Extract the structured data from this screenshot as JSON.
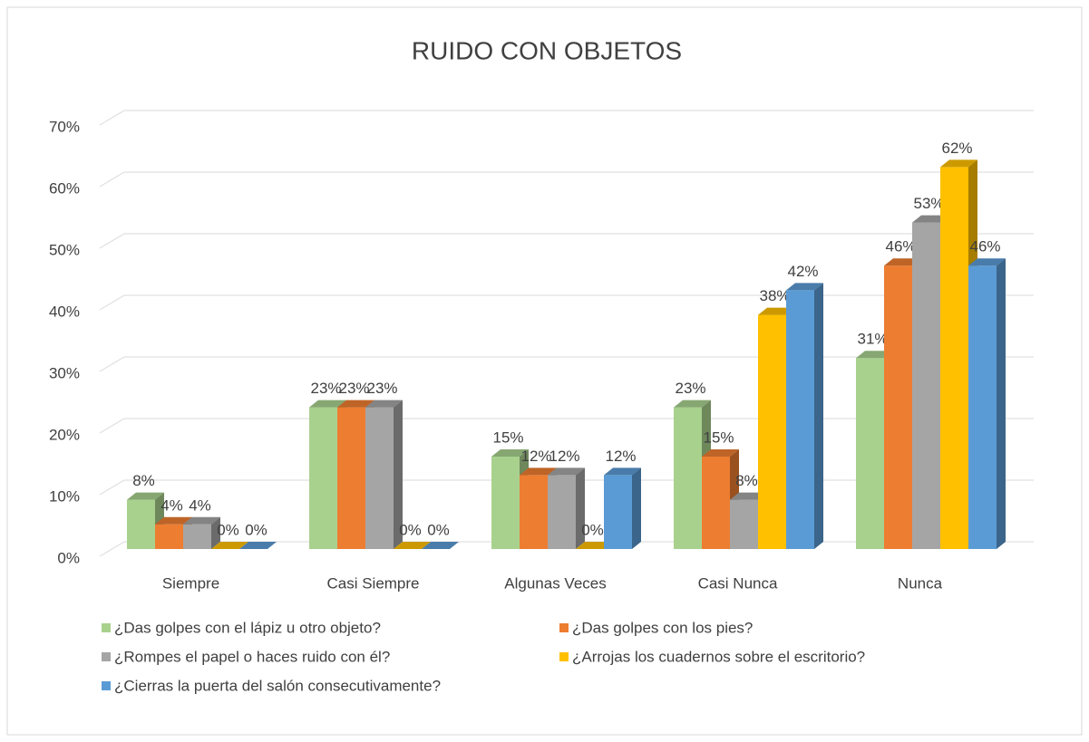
{
  "chart_data": {
    "type": "bar3d",
    "title": "RUIDO CON OBJETOS",
    "categories": [
      "Siempre",
      "Casi Siempre",
      "Algunas Veces",
      "Casi Nunca",
      "Nunca"
    ],
    "series": [
      {
        "name": "¿Das golpes con el lápiz u otro objeto?",
        "color": "#a9d18e",
        "values": [
          8,
          23,
          15,
          23,
          31
        ],
        "value_labels": [
          "8%",
          "23%",
          "15%",
          "23%",
          "31%"
        ]
      },
      {
        "name": "¿Das golpes con los pies?",
        "color": "#ed7d31",
        "values": [
          4,
          23,
          12,
          15,
          46
        ],
        "value_labels": [
          "4%",
          "23%",
          "12%",
          "15%",
          "46%"
        ]
      },
      {
        "name": "¿Rompes el papel o haces ruido con él?",
        "color": "#a5a5a5",
        "values": [
          4,
          23,
          12,
          8,
          53
        ],
        "value_labels": [
          "4%",
          "23%",
          "12%",
          "8%",
          "53%"
        ]
      },
      {
        "name": "¿Arrojas los cuadernos sobre el escritorio?",
        "color": "#ffc000",
        "values": [
          0,
          0,
          0,
          38,
          62
        ],
        "value_labels": [
          "0%",
          "0%",
          "0%",
          "38%",
          "62%"
        ]
      },
      {
        "name": "¿Cierras la puerta del salón consecutivamente?",
        "color": "#5b9bd5",
        "values": [
          0,
          0,
          12,
          42,
          46
        ],
        "value_labels": [
          "0%",
          "0%",
          "12%",
          "42%",
          "46%"
        ]
      }
    ],
    "ylim": [
      0,
      70
    ],
    "yticks": [
      {
        "value": 0,
        "label": "0%"
      },
      {
        "value": 10,
        "label": "10%"
      },
      {
        "value": 20,
        "label": "20%"
      },
      {
        "value": 30,
        "label": "30%"
      },
      {
        "value": 40,
        "label": "40%"
      },
      {
        "value": 50,
        "label": "50%"
      },
      {
        "value": 60,
        "label": "60%"
      },
      {
        "value": 70,
        "label": "70%"
      }
    ],
    "grid": true,
    "legend": "bottom"
  }
}
